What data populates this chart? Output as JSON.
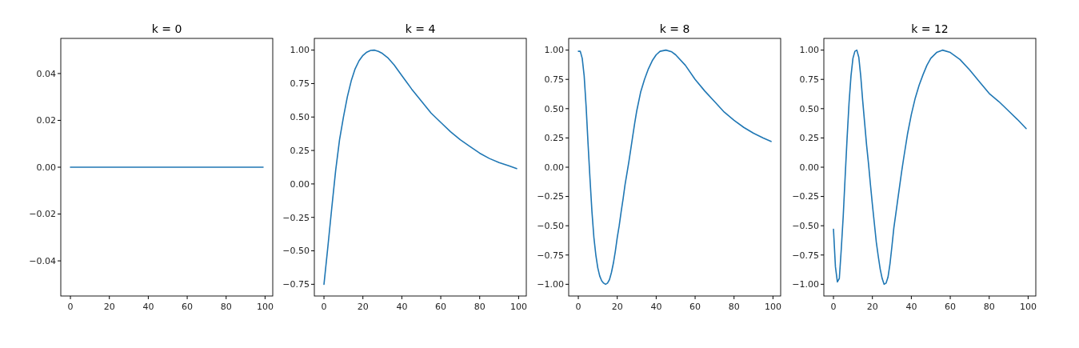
{
  "chart_data": [
    {
      "type": "line",
      "title": "k = 0",
      "x": [
        0,
        99
      ],
      "series": [
        {
          "color": "#1f77b4",
          "values": [
            0,
            0
          ]
        }
      ],
      "xlim": [
        -4.95,
        103.95
      ],
      "xticks": [
        0,
        20,
        40,
        60,
        80,
        100
      ],
      "ylim": [
        -0.055,
        0.055
      ],
      "yticks": [
        {
          "value": -0.04,
          "label": "−0.04"
        },
        {
          "value": -0.02,
          "label": "−0.02"
        },
        {
          "value": 0,
          "label": "0.00"
        },
        {
          "value": 0.02,
          "label": "0.02"
        },
        {
          "value": 0.04,
          "label": "0.04"
        }
      ]
    },
    {
      "type": "line",
      "title": "k = 4",
      "x": [
        0,
        2,
        4,
        6,
        8,
        10,
        12,
        14,
        16,
        18,
        20,
        22,
        24,
        26,
        28,
        30,
        33,
        36,
        40,
        45,
        50,
        55,
        60,
        65,
        70,
        75,
        80,
        85,
        90,
        95,
        99
      ],
      "series": [
        {
          "color": "#1f77b4",
          "values": [
            -0.75,
            -0.47,
            -0.18,
            0.1,
            0.33,
            0.5,
            0.65,
            0.77,
            0.86,
            0.92,
            0.96,
            0.985,
            0.998,
            1.0,
            0.99,
            0.975,
            0.94,
            0.89,
            0.81,
            0.71,
            0.62,
            0.53,
            0.46,
            0.39,
            0.33,
            0.28,
            0.23,
            0.19,
            0.16,
            0.135,
            0.115
          ]
        }
      ],
      "xlim": [
        -4.95,
        103.95
      ],
      "xticks": [
        0,
        20,
        40,
        60,
        80,
        100
      ],
      "ylim": [
        -0.8375,
        1.0875
      ],
      "yticks": [
        {
          "value": -0.75,
          "label": "−0.75"
        },
        {
          "value": -0.5,
          "label": "−0.50"
        },
        {
          "value": -0.25,
          "label": "−0.25"
        },
        {
          "value": 0,
          "label": "0.00"
        },
        {
          "value": 0.25,
          "label": "0.25"
        },
        {
          "value": 0.5,
          "label": "0.50"
        },
        {
          "value": 0.75,
          "label": "0.75"
        },
        {
          "value": 1,
          "label": "1.00"
        }
      ]
    },
    {
      "type": "line",
      "title": "k = 8",
      "x": [
        0,
        1,
        2,
        3,
        4,
        5,
        6,
        7,
        8,
        9,
        10,
        11,
        12,
        13,
        14,
        15,
        16,
        17,
        18,
        19,
        20,
        21,
        22,
        23,
        24,
        25,
        26,
        27,
        28,
        29,
        30,
        32,
        34,
        36,
        38,
        40,
        42,
        45,
        48,
        50,
        55,
        60,
        65,
        70,
        75,
        80,
        85,
        90,
        95,
        99
      ],
      "series": [
        {
          "color": "#1f77b4",
          "values": [
            0.99,
            0.99,
            0.93,
            0.78,
            0.52,
            0.2,
            -0.1,
            -0.38,
            -0.6,
            -0.75,
            -0.86,
            -0.93,
            -0.97,
            -0.99,
            -1.0,
            -0.99,
            -0.96,
            -0.9,
            -0.82,
            -0.72,
            -0.6,
            -0.5,
            -0.38,
            -0.27,
            -0.15,
            -0.05,
            0.05,
            0.16,
            0.27,
            0.38,
            0.48,
            0.64,
            0.75,
            0.84,
            0.91,
            0.96,
            0.99,
            1.0,
            0.985,
            0.96,
            0.87,
            0.75,
            0.65,
            0.56,
            0.47,
            0.4,
            0.34,
            0.29,
            0.25,
            0.22
          ]
        }
      ],
      "xlim": [
        -4.95,
        103.95
      ],
      "xticks": [
        0,
        20,
        40,
        60,
        80,
        100
      ],
      "ylim": [
        -1.1,
        1.1
      ],
      "yticks": [
        {
          "value": -1,
          "label": "−1.00"
        },
        {
          "value": -0.75,
          "label": "−0.75"
        },
        {
          "value": -0.5,
          "label": "−0.50"
        },
        {
          "value": -0.25,
          "label": "−0.25"
        },
        {
          "value": 0,
          "label": "0.00"
        },
        {
          "value": 0.25,
          "label": "0.25"
        },
        {
          "value": 0.5,
          "label": "0.50"
        },
        {
          "value": 0.75,
          "label": "0.75"
        },
        {
          "value": 1,
          "label": "1.00"
        }
      ]
    },
    {
      "type": "line",
      "title": "k = 12",
      "x": [
        0,
        1,
        2,
        3,
        4,
        5,
        6,
        7,
        8,
        9,
        10,
        11,
        12,
        13,
        14,
        15,
        16,
        17,
        18,
        19,
        20,
        21,
        22,
        23,
        24,
        25,
        26,
        27,
        28,
        29,
        30,
        31,
        32,
        33,
        34,
        35,
        36,
        38,
        40,
        42,
        44,
        46,
        48,
        50,
        53,
        56,
        60,
        65,
        70,
        75,
        80,
        85,
        90,
        95,
        99
      ],
      "series": [
        {
          "color": "#1f77b4",
          "values": [
            -0.53,
            -0.85,
            -0.98,
            -0.95,
            -0.7,
            -0.42,
            -0.08,
            0.25,
            0.55,
            0.78,
            0.93,
            0.99,
            1.0,
            0.94,
            0.78,
            0.57,
            0.38,
            0.19,
            0.03,
            -0.15,
            -0.32,
            -0.48,
            -0.64,
            -0.76,
            -0.87,
            -0.95,
            -1.0,
            -0.99,
            -0.94,
            -0.83,
            -0.68,
            -0.52,
            -0.4,
            -0.28,
            -0.16,
            -0.04,
            0.07,
            0.28,
            0.45,
            0.59,
            0.7,
            0.79,
            0.87,
            0.93,
            0.98,
            1.0,
            0.98,
            0.92,
            0.83,
            0.73,
            0.63,
            0.56,
            0.48,
            0.4,
            0.33
          ]
        }
      ],
      "xlim": [
        -4.95,
        103.95
      ],
      "xticks": [
        0,
        20,
        40,
        60,
        80,
        100
      ],
      "ylim": [
        -1.1,
        1.1
      ],
      "yticks": [
        {
          "value": -1,
          "label": "−1.00"
        },
        {
          "value": -0.75,
          "label": "−0.75"
        },
        {
          "value": -0.5,
          "label": "−0.50"
        },
        {
          "value": -0.25,
          "label": "−0.25"
        },
        {
          "value": 0,
          "label": "0.00"
        },
        {
          "value": 0.25,
          "label": "0.25"
        },
        {
          "value": 0.5,
          "label": "0.50"
        },
        {
          "value": 0.75,
          "label": "0.75"
        },
        {
          "value": 1,
          "label": "1.00"
        }
      ]
    }
  ]
}
